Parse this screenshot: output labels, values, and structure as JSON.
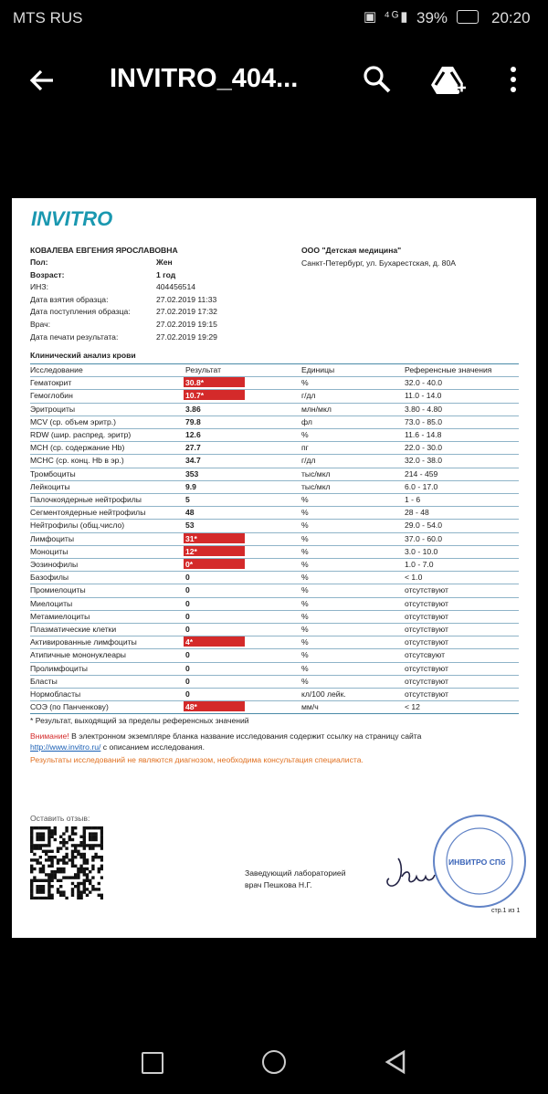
{
  "status_bar": {
    "carrier": "MTS RUS",
    "battery": "39%",
    "time": "20:20"
  },
  "toolbar": {
    "title": "INVITRO_404..."
  },
  "document": {
    "logo": "INVITRO",
    "patient_name": "КОВАЛЕВА ЕВГЕНИЯ ЯРОСЛАВОВНА",
    "patient_info": [
      {
        "label": "Пол:",
        "value": "Жен",
        "bold": true
      },
      {
        "label": "Возраст:",
        "value": "1 год",
        "bold": true
      },
      {
        "label": "ИНЗ:",
        "value": "404456514",
        "bold": false
      },
      {
        "label": "Дата взятия образца:",
        "value": "27.02.2019 11:33",
        "bold": false
      },
      {
        "label": "Дата поступления образца:",
        "value": "27.02.2019 17:32",
        "bold": false
      },
      {
        "label": "Врач:",
        "value": "27.02.2019 19:15",
        "bold": false
      },
      {
        "label": "Дата печати результата:",
        "value": "27.02.2019 19:29",
        "bold": false
      }
    ],
    "clinic_name": "ООО \"Детская медицина\"",
    "clinic_address": "Санкт-Петербург, ул. Бухарестская, д. 80А",
    "section_title": "Клинический анализ крови",
    "table": {
      "header": [
        "Исследование",
        "Результат",
        "Единицы",
        "Референсные значения"
      ],
      "rows": [
        {
          "name": "Гематокрит",
          "result": "30.8*",
          "unit": "%",
          "ref": "32.0 - 40.0",
          "flag": true
        },
        {
          "name": "Гемоглобин",
          "result": "10.7*",
          "unit": "г/дл",
          "ref": "11.0 - 14.0",
          "flag": true
        },
        {
          "name": "Эритроциты",
          "result": "3.86",
          "unit": "млн/мкл",
          "ref": "3.80 - 4.80",
          "flag": false
        },
        {
          "name": "MCV (ср. объем эритр.)",
          "result": "79.8",
          "unit": "фл",
          "ref": "73.0 - 85.0",
          "flag": false
        },
        {
          "name": "RDW (шир. распред. эритр)",
          "result": "12.6",
          "unit": "%",
          "ref": "11.6 - 14.8",
          "flag": false
        },
        {
          "name": "MCH (ср. содержание Hb)",
          "result": "27.7",
          "unit": "пг",
          "ref": "22.0 - 30.0",
          "flag": false
        },
        {
          "name": "MCHC (ср. конц. Hb в эр.)",
          "result": "34.7",
          "unit": "г/дл",
          "ref": "32.0 - 38.0",
          "flag": false
        },
        {
          "name": "Тромбоциты",
          "result": "353",
          "unit": "тыс/мкл",
          "ref": "214 - 459",
          "flag": false
        },
        {
          "name": "Лейкоциты",
          "result": "9.9",
          "unit": "тыс/мкл",
          "ref": "6.0 - 17.0",
          "flag": false
        },
        {
          "name": "Палочкоядерные нейтрофилы",
          "result": "5",
          "unit": "%",
          "ref": "1 - 6",
          "flag": false
        },
        {
          "name": "Сегментоядерные нейтрофилы",
          "result": "48",
          "unit": "%",
          "ref": "28 - 48",
          "flag": false
        },
        {
          "name": "Нейтрофилы (общ.число)",
          "result": "53",
          "unit": "%",
          "ref": "29.0 - 54.0",
          "flag": false
        },
        {
          "name": "Лимфоциты",
          "result": "31*",
          "unit": "%",
          "ref": "37.0 - 60.0",
          "flag": true
        },
        {
          "name": "Моноциты",
          "result": "12*",
          "unit": "%",
          "ref": "3.0 - 10.0",
          "flag": true
        },
        {
          "name": "Эозинофилы",
          "result": "0*",
          "unit": "%",
          "ref": "1.0 - 7.0",
          "flag": true
        },
        {
          "name": "Базофилы",
          "result": "0",
          "unit": "%",
          "ref": "< 1.0",
          "flag": false
        },
        {
          "name": "Промиелоциты",
          "result": "0",
          "unit": "%",
          "ref": "отсутствуют",
          "flag": false
        },
        {
          "name": "Миелоциты",
          "result": "0",
          "unit": "%",
          "ref": "отсутствуют",
          "flag": false
        },
        {
          "name": "Метамиелоциты",
          "result": "0",
          "unit": "%",
          "ref": "отсутствуют",
          "flag": false
        },
        {
          "name": "Плазматические клетки",
          "result": "0",
          "unit": "%",
          "ref": "отсутствуют",
          "flag": false
        },
        {
          "name": "Активированные лимфоциты",
          "result": "4*",
          "unit": "%",
          "ref": "отсутствуют",
          "flag": true
        },
        {
          "name": "Атипичные мононуклеары",
          "result": "0",
          "unit": "%",
          "ref": "отсутсвуют",
          "flag": false
        },
        {
          "name": "Пролимфоциты",
          "result": "0",
          "unit": "%",
          "ref": "отсутствуют",
          "flag": false
        },
        {
          "name": "Бласты",
          "result": "0",
          "unit": "%",
          "ref": "отсутствуют",
          "flag": false
        },
        {
          "name": "Нормобласты",
          "result": "0",
          "unit": "кл/100 лейк.",
          "ref": "отсутствуют",
          "flag": false
        },
        {
          "name": "СОЭ (по Панченкову)",
          "result": "48*",
          "unit": "мм/ч",
          "ref": "< 12",
          "flag": true
        }
      ]
    },
    "footnote": "* Результат, выходящий за пределы референсных значений",
    "warning_label": "Внимание!",
    "warning_text": " В электронном экземпляре бланка название исследования содержит ссылку на страницу сайта",
    "warning_link": "http://www.invitro.ru/",
    "warning_text_2": " с описанием исследования.",
    "disclaimer": "Результаты исследований не являются диагнозом, необходима консультация специалиста.",
    "feedback": "Оставить отзыв:",
    "signer_title": "Заведующий лабораторией",
    "signer_name": "врач Пешкова Н.Г.",
    "stamp": "ИНВИТРО СПб",
    "page_number": "стр.1 из 1"
  }
}
